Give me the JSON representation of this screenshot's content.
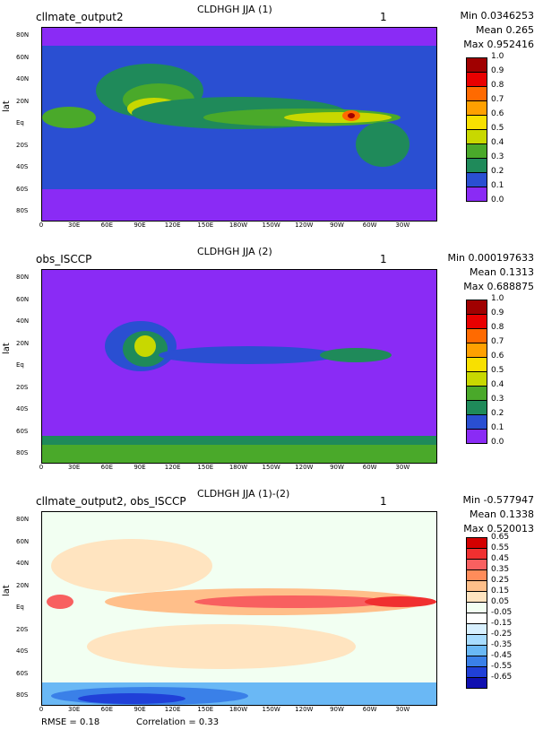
{
  "panels": [
    {
      "title": "CLDHGH JJA (1)",
      "label": "cllmate_output2",
      "number": "1",
      "stats": {
        "min": "Min 0.0346253",
        "mean": "Mean 0.265",
        "max": "Max 0.952416"
      },
      "colorbar_labels": [
        "1.0",
        "0.9",
        "0.8",
        "0.7",
        "0.6",
        "0.5",
        "0.4",
        "0.3",
        "0.2",
        "0.1",
        "0.0"
      ],
      "colors": [
        "#a00000",
        "#e80000",
        "#ff6a00",
        "#ffa000",
        "#f8e000",
        "#c8d800",
        "#4aa92a",
        "#1f8a5a",
        "#2a4fd2",
        "#8a2bf5"
      ]
    },
    {
      "title": "CLDHGH JJA (2)",
      "label": "obs_ISCCP",
      "number": "1",
      "stats": {
        "min": "Min 0.000197633",
        "mean": "Mean 0.1313",
        "max": "Max 0.688875"
      },
      "colorbar_labels": [
        "1.0",
        "0.9",
        "0.8",
        "0.7",
        "0.6",
        "0.5",
        "0.4",
        "0.3",
        "0.2",
        "0.1",
        "0.0"
      ],
      "colors": [
        "#a00000",
        "#e80000",
        "#ff6a00",
        "#ffa000",
        "#f8e000",
        "#c8d800",
        "#4aa92a",
        "#1f8a5a",
        "#2a4fd2",
        "#8a2bf5"
      ]
    },
    {
      "title": "CLDHGH JJA (1)-(2)",
      "label": "cllmate_output2, obs_ISCCP",
      "number": "1",
      "stats": {
        "min": "Min -0.577947",
        "mean": "Mean 0.1338",
        "max": "Max 0.520013"
      },
      "colorbar_labels": [
        "0.65",
        "0.55",
        "0.45",
        "0.35",
        "0.25",
        "0.15",
        "0.05",
        "-0.05",
        "-0.15",
        "-0.25",
        "-0.35",
        "-0.45",
        "-0.55",
        "-0.65"
      ],
      "colors": [
        "#d40000",
        "#f03030",
        "#f86060",
        "#ff8c5a",
        "#ffbf8a",
        "#ffe4c0",
        "#f2fff2",
        "#ffffff",
        "#d8f0ff",
        "#a8dcff",
        "#6ab8f5",
        "#3a80e8",
        "#2040d8",
        "#1010b0"
      ]
    }
  ],
  "axes": {
    "ylabel": "lat",
    "lat_ticks": [
      "80N",
      "60N",
      "40N",
      "20N",
      "Eq",
      "20S",
      "40S",
      "60S",
      "80S"
    ],
    "lon_ticks": [
      "0",
      "30E",
      "60E",
      "90E",
      "120E",
      "150E",
      "180W",
      "150W",
      "120W",
      "90W",
      "60W",
      "30W"
    ]
  },
  "footer": {
    "rmse": "RMSE = 0.18",
    "correlation": "Correlation = 0.33"
  }
}
